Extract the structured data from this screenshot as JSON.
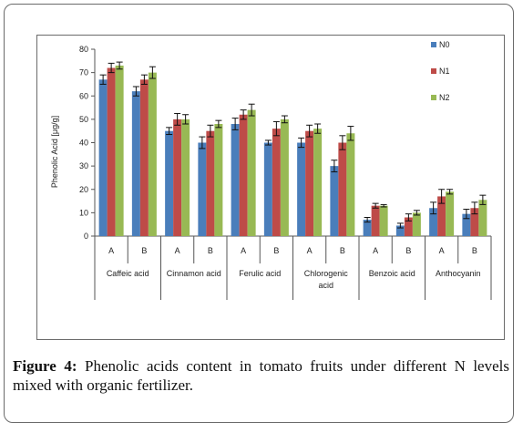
{
  "caption": {
    "label": "Figure 4:",
    "text": " Phenolic acids content in tomato fruits under different N levels mixed with organic fertilizer."
  },
  "chart_data": {
    "type": "bar",
    "title": "",
    "xlabel": "",
    "ylabel": "Phenolic Acid [μg/g]",
    "ylim": [
      0,
      80
    ],
    "yticks": [
      0,
      10,
      20,
      30,
      40,
      50,
      60,
      70,
      80
    ],
    "grid": false,
    "legend_position": "right",
    "groups": [
      {
        "label": "Caffeic acid",
        "subs": [
          "A",
          "B"
        ]
      },
      {
        "label": "Cinnamon acid",
        "subs": [
          "A",
          "B"
        ]
      },
      {
        "label": "Ferulic acid",
        "subs": [
          "A",
          "B"
        ]
      },
      {
        "label": "Chlorogenic acid",
        "subs": [
          "A",
          "B"
        ]
      },
      {
        "label": "Benzoic acid",
        "subs": [
          "A",
          "B"
        ]
      },
      {
        "label": "Anthocyanin",
        "subs": [
          "A",
          "B"
        ]
      }
    ],
    "series": [
      {
        "name": "N0",
        "color": "#4a7ebb",
        "values": [
          67,
          62,
          45,
          40,
          48,
          40,
          40,
          30,
          7,
          4.5,
          12,
          9.5
        ],
        "errors": [
          2,
          2,
          1.5,
          2.5,
          2.5,
          1,
          2,
          2.5,
          1,
          1,
          2.5,
          2
        ]
      },
      {
        "name": "N1",
        "color": "#be4b48",
        "values": [
          72,
          67,
          50,
          45,
          52,
          46,
          45,
          40,
          13,
          8,
          17,
          12
        ],
        "errors": [
          2,
          2,
          2.5,
          2.5,
          2,
          3,
          2.5,
          3,
          1,
          1.5,
          3,
          2.5
        ]
      },
      {
        "name": "N2",
        "color": "#98b954",
        "values": [
          73,
          70,
          50,
          48,
          54,
          50,
          46,
          44,
          13,
          10,
          19,
          15.5
        ],
        "errors": [
          1.5,
          2.5,
          2,
          1.5,
          2.5,
          1.5,
          2,
          3,
          0.5,
          1,
          1,
          2
        ]
      }
    ]
  }
}
